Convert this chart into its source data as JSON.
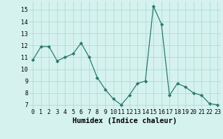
{
  "x": [
    0,
    1,
    2,
    3,
    4,
    5,
    6,
    7,
    8,
    9,
    10,
    11,
    12,
    13,
    14,
    15,
    16,
    17,
    18,
    19,
    20,
    21,
    22,
    23
  ],
  "y": [
    10.8,
    11.9,
    11.9,
    10.7,
    11.0,
    11.3,
    12.2,
    11.0,
    9.3,
    8.3,
    7.5,
    7.0,
    7.8,
    8.8,
    9.0,
    15.3,
    13.8,
    7.8,
    8.8,
    8.5,
    8.0,
    7.8,
    7.1,
    7.0
  ],
  "line_color": "#2a7a6a",
  "marker": "D",
  "marker_size": 2.2,
  "bg_color": "#d5f2ee",
  "grid_color": "#aaddd6",
  "xlabel": "Humidex (Indice chaleur)",
  "ylim": [
    6.7,
    15.7
  ],
  "xlim": [
    -0.5,
    23.4
  ],
  "yticks": [
    7,
    8,
    9,
    10,
    11,
    12,
    13,
    14,
    15
  ],
  "xticks": [
    0,
    1,
    2,
    3,
    4,
    5,
    6,
    7,
    8,
    9,
    10,
    11,
    12,
    13,
    14,
    15,
    16,
    17,
    18,
    19,
    20,
    21,
    22,
    23
  ],
  "xlabel_fontsize": 7.5,
  "tick_fontsize": 6.0
}
